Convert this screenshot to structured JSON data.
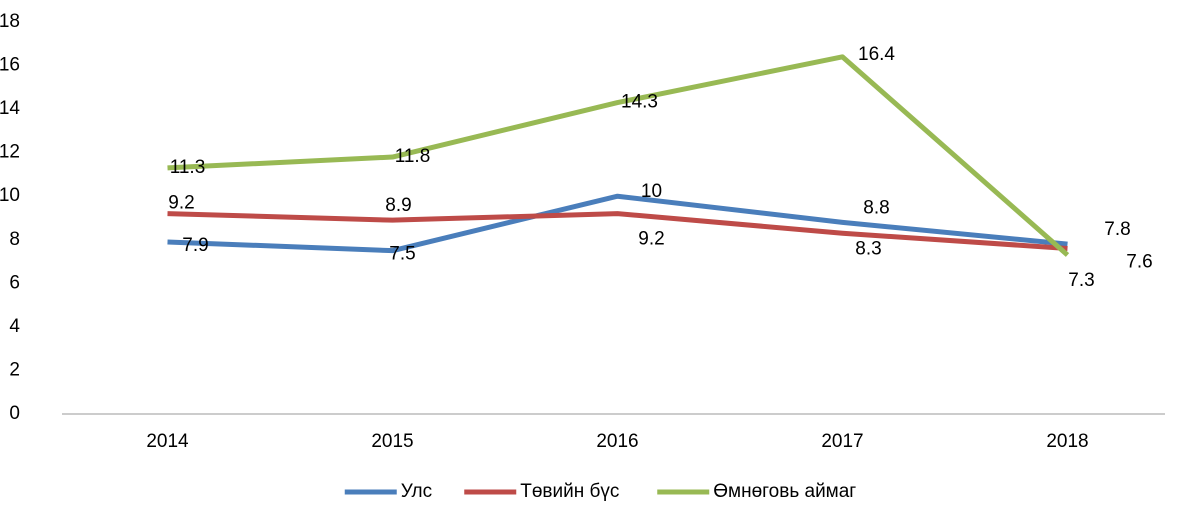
{
  "chart_data": {
    "type": "line",
    "categories": [
      "2014",
      "2015",
      "2016",
      "2017",
      "2018"
    ],
    "series": [
      {
        "name": "Улс",
        "color": "#4a7ebb",
        "values": [
          7.9,
          7.5,
          10,
          8.8,
          7.8
        ]
      },
      {
        "name": "Төвийн бүс",
        "color": "#be4b48",
        "values": [
          9.2,
          8.9,
          9.2,
          8.3,
          7.6
        ]
      },
      {
        "name": "Өмнөговь аймаг",
        "color": "#98b954",
        "values": [
          11.3,
          11.8,
          14.3,
          16.4,
          7.3
        ]
      }
    ],
    "ylim": [
      0,
      18
    ],
    "yticks": [
      0,
      2,
      4,
      6,
      8,
      10,
      12,
      14,
      16,
      18
    ],
    "grid": false,
    "legend": "bottom"
  }
}
